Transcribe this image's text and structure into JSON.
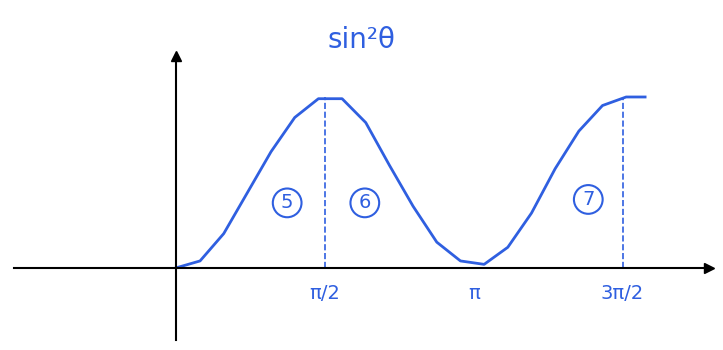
{
  "chart_data": {
    "type": "line",
    "title": "sin²θ",
    "x": [
      0,
      0.25,
      0.5,
      0.75,
      1.0,
      1.25,
      1.5,
      1.75,
      2.0,
      2.25,
      2.5,
      2.75,
      3.0,
      3.25,
      3.5,
      3.75,
      4.0,
      4.25,
      4.5,
      4.75,
      4.95
    ],
    "values": [
      0,
      0.04,
      0.2,
      0.44,
      0.68,
      0.88,
      0.99,
      0.99,
      0.85,
      0.6,
      0.36,
      0.15,
      0.04,
      0.02,
      0.12,
      0.32,
      0.58,
      0.8,
      0.95,
      1.0,
      1.0
    ],
    "color": "#2f5fe0",
    "xlim": [
      -1.71,
      5.62
    ],
    "ylim": [
      -0.42,
      1.24
    ],
    "xticks": [
      {
        "value": 1.5708,
        "label": "π/2"
      },
      {
        "value": 3.1416,
        "label": "π"
      },
      {
        "value": 4.7124,
        "label": "3π/2"
      }
    ],
    "yticks": [],
    "tick_labels": "x",
    "annotations": [
      {
        "text": "5",
        "x": 1.17,
        "y": 0.38
      },
      {
        "text": "6",
        "x": 1.99,
        "y": 0.38
      },
      {
        "text": "7",
        "x": 4.35,
        "y": 0.4
      }
    ]
  }
}
